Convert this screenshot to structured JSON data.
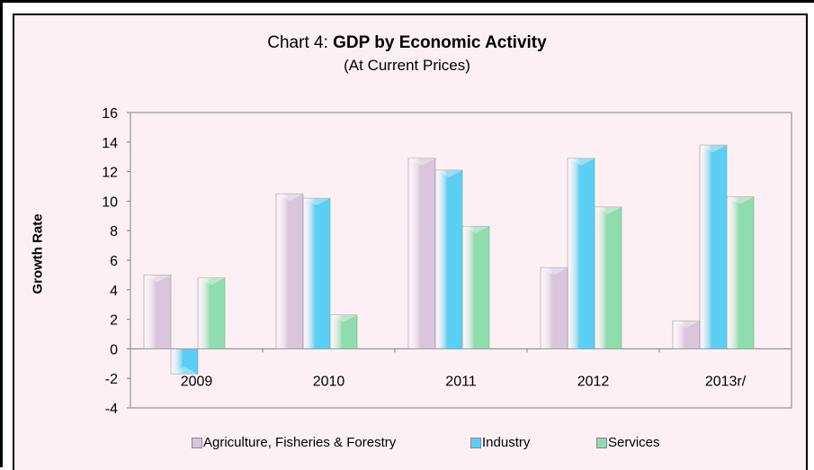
{
  "title": {
    "prefix": "Chart 4: ",
    "main": "GDP by Economic Activity",
    "subtitle": "(At Current Prices)"
  },
  "colors": {
    "background": "#fdf0f5",
    "agriculture": "#d9c6dc",
    "industry": "#5bcff3",
    "services": "#8fdcae"
  },
  "chart_data": {
    "type": "bar",
    "categories": [
      "2009",
      "2010",
      "2011",
      "2012",
      "2013r/"
    ],
    "series": [
      {
        "name": "Agriculture, Fisheries & Forestry",
        "values": [
          5.0,
          10.5,
          12.9,
          5.5,
          1.9
        ]
      },
      {
        "name": "Industry",
        "values": [
          -1.7,
          10.2,
          12.1,
          12.9,
          13.8
        ]
      },
      {
        "name": "Services",
        "values": [
          4.8,
          2.3,
          8.3,
          9.6,
          10.3
        ]
      }
    ],
    "xlabel": "",
    "ylabel": "Growth Rate",
    "ylim": [
      -4,
      16
    ],
    "yticks": [
      -4,
      -2,
      0,
      2,
      4,
      6,
      8,
      10,
      12,
      14,
      16
    ],
    "grid": false,
    "legend": "bottom"
  }
}
